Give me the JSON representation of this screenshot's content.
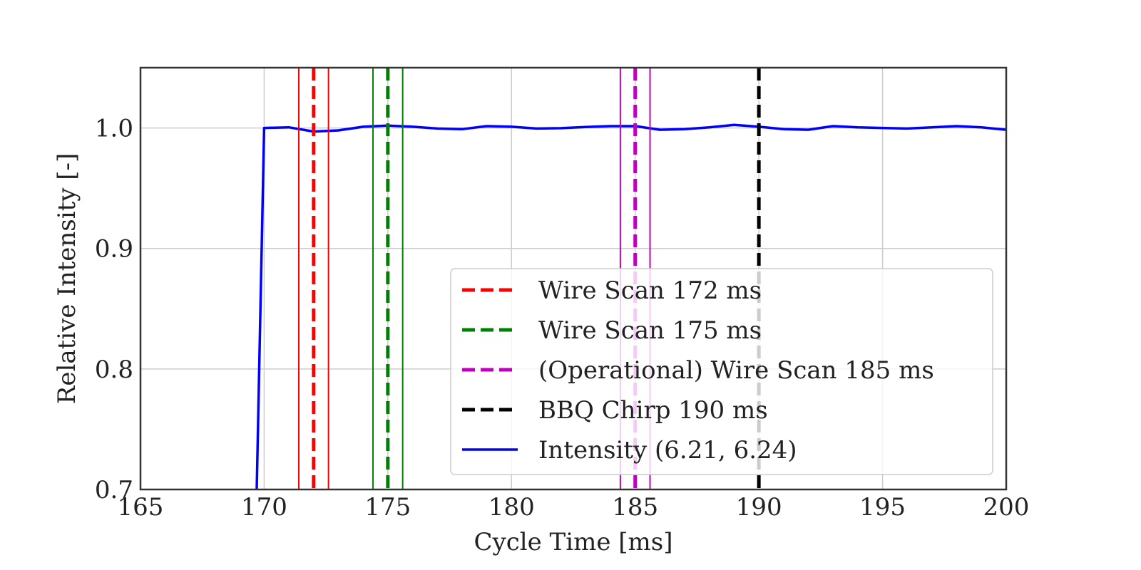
{
  "chart_data": {
    "type": "line",
    "xlabel": "Cycle Time [ms]",
    "ylabel": "Relative Intensity [-]",
    "xlim": [
      165,
      200
    ],
    "ylim": [
      0.7,
      1.05
    ],
    "xticks": [
      "165",
      "170",
      "175",
      "180",
      "185",
      "190",
      "195",
      "200"
    ],
    "yticks": [
      "0.7",
      "0.8",
      "0.9",
      "1.0"
    ],
    "grid": true,
    "legend_position": "lower-right",
    "series": [
      {
        "name": "Intensity (6.21, 6.24)",
        "color": "#0000ff",
        "style": "solid",
        "x": [
          169.7,
          170,
          171,
          172,
          173,
          174,
          175,
          176,
          177,
          178,
          179,
          180,
          181,
          182,
          183,
          184,
          185,
          186,
          187,
          188,
          189,
          190,
          191,
          192,
          193,
          194,
          195,
          196,
          197,
          198,
          199,
          200
        ],
        "y": [
          0.7,
          1.0,
          1.0005,
          0.997,
          0.998,
          1.001,
          1.002,
          1.001,
          0.9995,
          0.999,
          1.0015,
          1.001,
          0.9995,
          0.9998,
          1.0008,
          1.0015,
          1.0015,
          0.9985,
          0.999,
          1.0005,
          1.0025,
          1.001,
          0.999,
          0.9985,
          1.0015,
          1.0005,
          1.0,
          0.9995,
          1.0005,
          1.0015,
          1.0005,
          0.9985
        ]
      }
    ],
    "vertical_lines": [
      {
        "name": "Wire Scan 172 ms",
        "x": 172,
        "band": [
          171.4,
          172.6
        ],
        "color": "#ff0000"
      },
      {
        "name": "Wire Scan 175 ms",
        "x": 175,
        "band": [
          174.4,
          175.6
        ],
        "color": "#008000"
      },
      {
        "name": "(Operational) Wire Scan 185 ms",
        "x": 185,
        "band": [
          184.4,
          185.6
        ],
        "color": "#bf00bf"
      },
      {
        "name": "BBQ Chirp 190 ms",
        "x": 190,
        "band": null,
        "color": "#000000"
      }
    ]
  }
}
